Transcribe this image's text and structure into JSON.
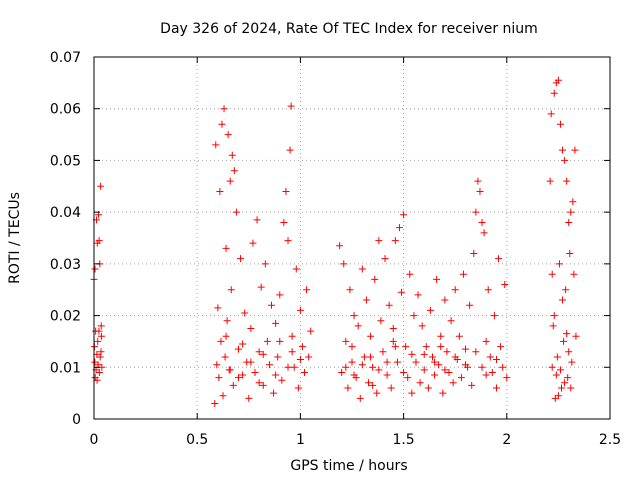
{
  "chart_data": {
    "type": "scatter",
    "title": "Day 326 of 2024, Rate Of TEC Index for receiver nium",
    "xlabel": "GPS time / hours",
    "ylabel": "ROTI / TECUs",
    "xlim": [
      0,
      2.5
    ],
    "ylim": [
      0,
      0.07
    ],
    "xticks": [
      0,
      0.5,
      1,
      1.5,
      2,
      2.5
    ],
    "xtick_labels": [
      "0",
      "0.5",
      "1",
      "1.5",
      "2",
      "2.5"
    ],
    "yticks": [
      0,
      0.01,
      0.02,
      0.03,
      0.04,
      0.05,
      0.06,
      0.07
    ],
    "ytick_labels": [
      "0",
      "0.01",
      "0.02",
      "0.03",
      "0.04",
      "0.05",
      "0.06",
      "0.07"
    ],
    "grid": true,
    "marker": "+",
    "color": "#ff0000",
    "series": [
      {
        "name": "ROTI",
        "points": [
          [
            0.0,
            0.027
          ],
          [
            0.002,
            0.014
          ],
          [
            0.004,
            0.011
          ],
          [
            0.006,
            0.008
          ],
          [
            0.008,
            0.017
          ],
          [
            0.01,
            0.0095
          ],
          [
            0.012,
            0.0385
          ],
          [
            0.014,
            0.0125
          ],
          [
            0.016,
            0.034
          ],
          [
            0.018,
            0.015
          ],
          [
            0.02,
            0.0105
          ],
          [
            0.022,
            0.0395
          ],
          [
            0.024,
            0.017
          ],
          [
            0.026,
            0.009
          ],
          [
            0.028,
            0.03
          ],
          [
            0.03,
            0.012
          ],
          [
            0.032,
            0.045
          ],
          [
            0.034,
            0.013
          ],
          [
            0.036,
            0.016
          ],
          [
            0.038,
            0.01
          ],
          [
            0.005,
            0.029
          ],
          [
            0.015,
            0.0075
          ],
          [
            0.025,
            0.0345
          ],
          [
            0.035,
            0.018
          ],
          [
            0.585,
            0.003
          ],
          [
            0.59,
            0.053
          ],
          [
            0.595,
            0.0105
          ],
          [
            0.6,
            0.0215
          ],
          [
            0.605,
            0.008
          ],
          [
            0.61,
            0.044
          ],
          [
            0.615,
            0.015
          ],
          [
            0.62,
            0.057
          ],
          [
            0.625,
            0.0045
          ],
          [
            0.63,
            0.06
          ],
          [
            0.635,
            0.012
          ],
          [
            0.64,
            0.033
          ],
          [
            0.645,
            0.019
          ],
          [
            0.65,
            0.055
          ],
          [
            0.655,
            0.0095
          ],
          [
            0.66,
            0.046
          ],
          [
            0.665,
            0.025
          ],
          [
            0.67,
            0.051
          ],
          [
            0.675,
            0.0065
          ],
          [
            0.68,
            0.048
          ],
          [
            0.69,
            0.04
          ],
          [
            0.7,
            0.0135
          ],
          [
            0.71,
            0.031
          ],
          [
            0.72,
            0.0085
          ],
          [
            0.73,
            0.0205
          ],
          [
            0.74,
            0.011
          ],
          [
            0.75,
            0.004
          ],
          [
            0.76,
            0.0175
          ],
          [
            0.77,
            0.034
          ],
          [
            0.78,
            0.009
          ],
          [
            0.79,
            0.0385
          ],
          [
            0.8,
            0.013
          ],
          [
            0.81,
            0.0255
          ],
          [
            0.82,
            0.0065
          ],
          [
            0.83,
            0.03
          ],
          [
            0.84,
            0.015
          ],
          [
            0.85,
            0.0105
          ],
          [
            0.86,
            0.022
          ],
          [
            0.87,
            0.005
          ],
          [
            0.88,
            0.0185
          ],
          [
            0.89,
            0.012
          ],
          [
            0.9,
            0.024
          ],
          [
            0.91,
            0.0075
          ],
          [
            0.92,
            0.038
          ],
          [
            0.93,
            0.044
          ],
          [
            0.94,
            0.0345
          ],
          [
            0.95,
            0.052
          ],
          [
            0.955,
            0.0605
          ],
          [
            0.96,
            0.016
          ],
          [
            0.97,
            0.01
          ],
          [
            0.98,
            0.029
          ],
          [
            0.99,
            0.006
          ],
          [
            1.0,
            0.021
          ],
          [
            1.01,
            0.014
          ],
          [
            1.02,
            0.009
          ],
          [
            1.03,
            0.025
          ],
          [
            1.04,
            0.012
          ],
          [
            1.05,
            0.017
          ],
          [
            0.66,
            0.0095
          ],
          [
            0.7,
            0.008
          ],
          [
            0.76,
            0.011
          ],
          [
            0.82,
            0.0125
          ],
          [
            0.88,
            0.0085
          ],
          [
            0.94,
            0.01
          ],
          [
            1.0,
            0.0115
          ],
          [
            0.72,
            0.0145
          ],
          [
            0.8,
            0.007
          ],
          [
            0.9,
            0.015
          ],
          [
            0.96,
            0.013
          ],
          [
            0.64,
            0.016
          ],
          [
            1.19,
            0.0335
          ],
          [
            1.2,
            0.009
          ],
          [
            1.21,
            0.03
          ],
          [
            1.22,
            0.015
          ],
          [
            1.23,
            0.006
          ],
          [
            1.24,
            0.025
          ],
          [
            1.25,
            0.011
          ],
          [
            1.26,
            0.02
          ],
          [
            1.27,
            0.008
          ],
          [
            1.28,
            0.018
          ],
          [
            1.29,
            0.004
          ],
          [
            1.3,
            0.029
          ],
          [
            1.31,
            0.012
          ],
          [
            1.32,
            0.023
          ],
          [
            1.33,
            0.007
          ],
          [
            1.34,
            0.016
          ],
          [
            1.35,
            0.01
          ],
          [
            1.36,
            0.027
          ],
          [
            1.37,
            0.005
          ],
          [
            1.38,
            0.0345
          ],
          [
            1.39,
            0.019
          ],
          [
            1.4,
            0.013
          ],
          [
            1.41,
            0.031
          ],
          [
            1.42,
            0.0085
          ],
          [
            1.43,
            0.022
          ],
          [
            1.44,
            0.006
          ],
          [
            1.45,
            0.0175
          ],
          [
            1.46,
            0.0345
          ],
          [
            1.47,
            0.011
          ],
          [
            1.48,
            0.037
          ],
          [
            1.49,
            0.0245
          ],
          [
            1.5,
            0.0395
          ],
          [
            1.51,
            0.014
          ],
          [
            1.52,
            0.008
          ],
          [
            1.53,
            0.028
          ],
          [
            1.54,
            0.005
          ],
          [
            1.55,
            0.02
          ],
          [
            1.22,
            0.01
          ],
          [
            1.26,
            0.0085
          ],
          [
            1.3,
            0.0105
          ],
          [
            1.34,
            0.012
          ],
          [
            1.38,
            0.0095
          ],
          [
            1.42,
            0.011
          ],
          [
            1.46,
            0.014
          ],
          [
            1.5,
            0.009
          ],
          [
            1.54,
            0.0125
          ],
          [
            1.25,
            0.014
          ],
          [
            1.35,
            0.0065
          ],
          [
            1.45,
            0.015
          ],
          [
            1.56,
            0.011
          ],
          [
            1.57,
            0.024
          ],
          [
            1.58,
            0.007
          ],
          [
            1.59,
            0.018
          ],
          [
            1.6,
            0.0095
          ],
          [
            1.61,
            0.014
          ],
          [
            1.62,
            0.006
          ],
          [
            1.63,
            0.021
          ],
          [
            1.64,
            0.012
          ],
          [
            1.65,
            0.0085
          ],
          [
            1.66,
            0.027
          ],
          [
            1.67,
            0.0105
          ],
          [
            1.68,
            0.016
          ],
          [
            1.69,
            0.005
          ],
          [
            1.7,
            0.023
          ],
          [
            1.71,
            0.013
          ],
          [
            1.72,
            0.009
          ],
          [
            1.73,
            0.019
          ],
          [
            1.74,
            0.007
          ],
          [
            1.75,
            0.025
          ],
          [
            1.76,
            0.0115
          ],
          [
            1.77,
            0.016
          ],
          [
            1.78,
            0.008
          ],
          [
            1.79,
            0.028
          ],
          [
            1.8,
            0.0135
          ],
          [
            1.81,
            0.01
          ],
          [
            1.82,
            0.022
          ],
          [
            1.83,
            0.0065
          ],
          [
            1.84,
            0.032
          ],
          [
            1.85,
            0.04
          ],
          [
            1.86,
            0.046
          ],
          [
            1.87,
            0.044
          ],
          [
            1.88,
            0.038
          ],
          [
            1.89,
            0.036
          ],
          [
            1.9,
            0.015
          ],
          [
            1.91,
            0.025
          ],
          [
            1.92,
            0.012
          ],
          [
            1.93,
            0.009
          ],
          [
            1.94,
            0.02
          ],
          [
            1.95,
            0.006
          ],
          [
            1.96,
            0.031
          ],
          [
            1.97,
            0.014
          ],
          [
            1.98,
            0.01
          ],
          [
            1.99,
            0.026
          ],
          [
            2.0,
            0.008
          ],
          [
            1.6,
            0.0125
          ],
          [
            1.65,
            0.011
          ],
          [
            1.7,
            0.0095
          ],
          [
            1.75,
            0.012
          ],
          [
            1.8,
            0.0105
          ],
          [
            1.85,
            0.013
          ],
          [
            1.9,
            0.0085
          ],
          [
            1.95,
            0.0115
          ],
          [
            1.68,
            0.014
          ],
          [
            1.88,
            0.01
          ],
          [
            2.21,
            0.046
          ],
          [
            2.215,
            0.059
          ],
          [
            2.22,
            0.028
          ],
          [
            2.225,
            0.018
          ],
          [
            2.23,
            0.063
          ],
          [
            2.235,
            0.004
          ],
          [
            2.24,
            0.065
          ],
          [
            2.245,
            0.012
          ],
          [
            2.25,
            0.0655
          ],
          [
            2.255,
            0.03
          ],
          [
            2.26,
            0.057
          ],
          [
            2.265,
            0.006
          ],
          [
            2.27,
            0.052
          ],
          [
            2.275,
            0.015
          ],
          [
            2.28,
            0.05
          ],
          [
            2.285,
            0.025
          ],
          [
            2.29,
            0.046
          ],
          [
            2.295,
            0.008
          ],
          [
            2.3,
            0.038
          ],
          [
            2.305,
            0.032
          ],
          [
            2.31,
            0.04
          ],
          [
            2.315,
            0.011
          ],
          [
            2.32,
            0.042
          ],
          [
            2.325,
            0.028
          ],
          [
            2.33,
            0.052
          ],
          [
            2.335,
            0.016
          ],
          [
            2.22,
            0.01
          ],
          [
            2.24,
            0.0085
          ],
          [
            2.26,
            0.0095
          ],
          [
            2.28,
            0.007
          ],
          [
            2.3,
            0.013
          ],
          [
            2.23,
            0.02
          ],
          [
            2.27,
            0.023
          ],
          [
            2.31,
            0.006
          ],
          [
            2.25,
            0.0045
          ],
          [
            2.29,
            0.0165
          ]
        ]
      }
    ]
  }
}
